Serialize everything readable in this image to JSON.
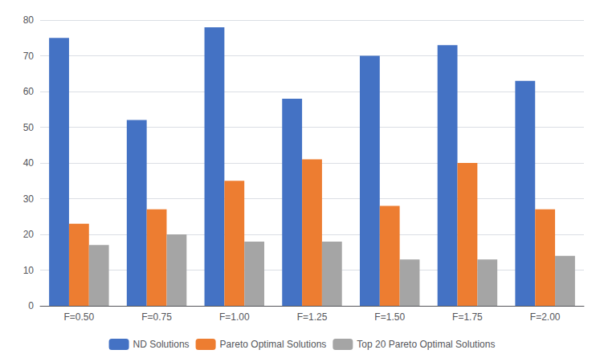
{
  "chart_data": {
    "type": "bar",
    "categories": [
      "F=0.50",
      "F=0.75",
      "F=1.00",
      "F=1.25",
      "F=1.50",
      "F=1.75",
      "F=2.00"
    ],
    "series": [
      {
        "name": "ND Solutions",
        "color": "#4472C4",
        "values": [
          75,
          52,
          78,
          58,
          70,
          73,
          63
        ]
      },
      {
        "name": "Pareto Optimal Solutions",
        "color": "#ED7D31",
        "values": [
          23,
          27,
          35,
          41,
          28,
          40,
          27
        ]
      },
      {
        "name": "Top 20 Pareto Optimal Solutions",
        "color": "#A5A5A5",
        "values": [
          17,
          20,
          18,
          18,
          13,
          13,
          14
        ]
      }
    ],
    "ylim": [
      0,
      80
    ],
    "yticks": [
      0,
      10,
      20,
      30,
      40,
      50,
      60,
      70,
      80
    ],
    "grid": true,
    "legend": "bottom"
  }
}
